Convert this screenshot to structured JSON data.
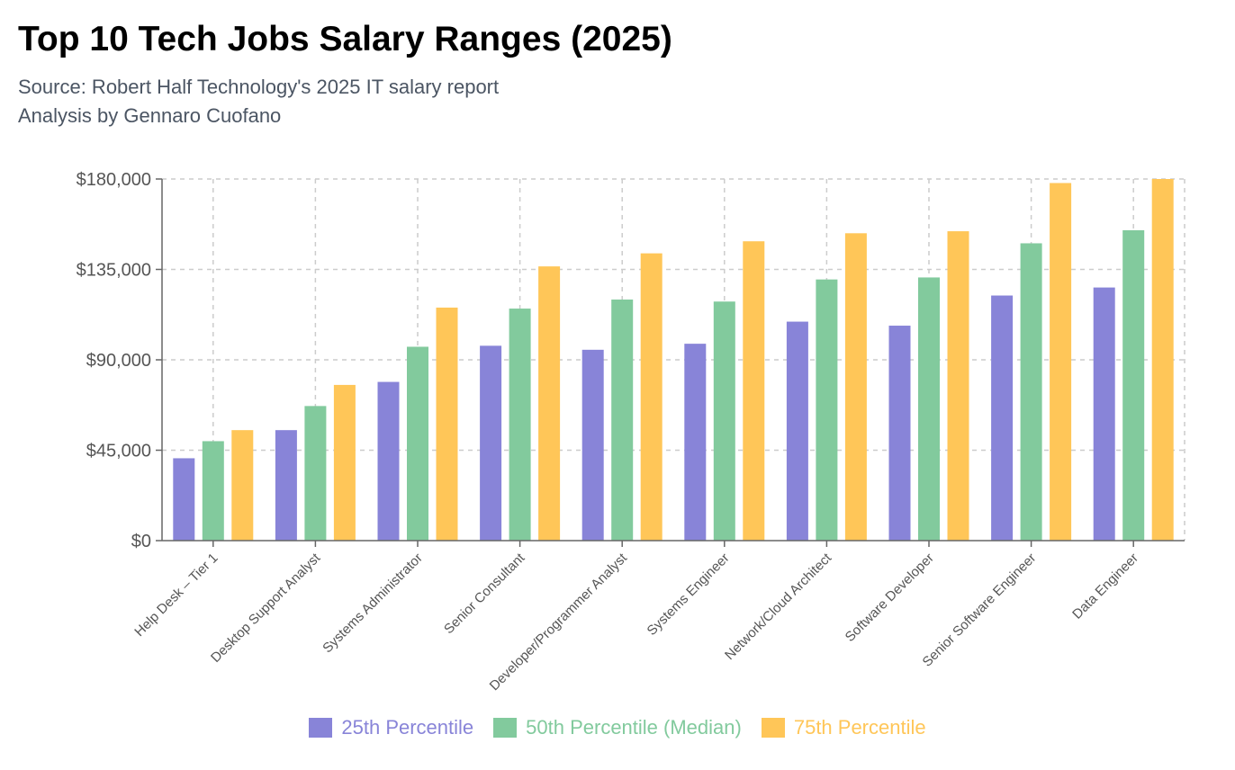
{
  "header": {
    "title": "Top 10 Tech Jobs Salary Ranges (2025)",
    "source": "Source: Robert Half Technology's 2025 IT salary report",
    "author": "Analysis by Gennaro Cuofano"
  },
  "chart_data": {
    "type": "bar",
    "categories": [
      "Help Desk – Tier 1",
      "Desktop Support Analyst",
      "Systems Administrator",
      "Senior Consultant",
      "Developer/Programmer Analyst",
      "Systems Engineer",
      "Network/Cloud Architect",
      "Software Developer",
      "Senior Software Engineer",
      "Data Engineer"
    ],
    "series": [
      {
        "name": "25th Percentile",
        "color": "#8884d8",
        "values": [
          41000,
          55000,
          79000,
          97000,
          95000,
          98000,
          109000,
          107000,
          122000,
          126000
        ]
      },
      {
        "name": "50th Percentile (Median)",
        "color": "#82ca9d",
        "values": [
          49500,
          67000,
          96500,
          115500,
          120000,
          119000,
          130000,
          131000,
          148000,
          154500
        ]
      },
      {
        "name": "75th Percentile",
        "color": "#ffc658",
        "values": [
          55000,
          77500,
          116000,
          136500,
          143000,
          149000,
          153000,
          154000,
          178000,
          180000
        ]
      }
    ],
    "yticks": [
      "$0",
      "$45,000",
      "$90,000",
      "$135,000",
      "$180,000"
    ],
    "ylim": [
      0,
      180000
    ],
    "grid": true,
    "legend": "bottom"
  }
}
